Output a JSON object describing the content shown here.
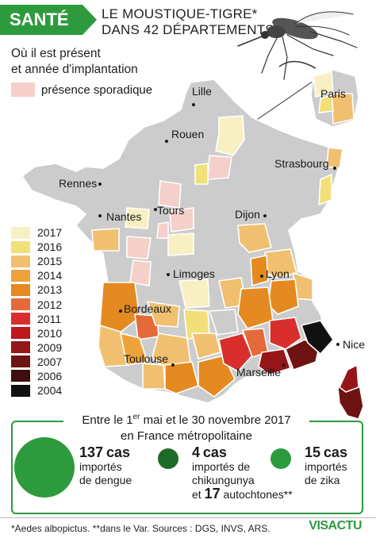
{
  "header": {
    "badge": "SANTÉ",
    "title_line1": "LE MOUSTIQUE-TIGRE*",
    "title_line2": "DANS 42 DÉPARTEMENTS"
  },
  "map_legend": {
    "subtitle_line1": "Où il est présent",
    "subtitle_line2": "et année d'implantation",
    "sporadic_label": "présence sporadique",
    "sporadic_color": "#f5cfca",
    "years": [
      {
        "label": "2017",
        "color": "#f8f0c2"
      },
      {
        "label": "2016",
        "color": "#f1e07a"
      },
      {
        "label": "2015",
        "color": "#f0c070"
      },
      {
        "label": "2014",
        "color": "#eda23a"
      },
      {
        "label": "2013",
        "color": "#e48a20"
      },
      {
        "label": "2012",
        "color": "#e56a3a"
      },
      {
        "label": "2011",
        "color": "#d92f2c"
      },
      {
        "label": "2010",
        "color": "#c0171d"
      },
      {
        "label": "2009",
        "color": "#951619"
      },
      {
        "label": "2007",
        "color": "#6e1212"
      },
      {
        "label": "2006",
        "color": "#3e0d0d"
      },
      {
        "label": "2004",
        "color": "#111111"
      }
    ],
    "absent_color": "#cccccc"
  },
  "cities": {
    "lille": "Lille",
    "rouen": "Rouen",
    "paris": "Paris",
    "strasbourg": "Strasbourg",
    "rennes": "Rennes",
    "nantes": "Nantes",
    "tours": "Tours",
    "dijon": "Dijon",
    "limoges": "Limoges",
    "lyon": "Lyon",
    "bordeaux": "Bordeaux",
    "toulouse": "Toulouse",
    "marseille": "Marseille",
    "nice": "Nice"
  },
  "cases": {
    "period_line1": "Entre le 1er mai et le 30 novembre 2017",
    "period_line1_pre": "Entre le 1",
    "period_line1_sup": "er",
    "period_line1_post": " mai et le 30 novembre 2017",
    "period_line2": "en France métropolitaine",
    "dengue": {
      "count": "137",
      "unit": "cas",
      "line1": "importés",
      "line2": "de dengue",
      "color": "#2e9a3e"
    },
    "chikungunya": {
      "count": "4",
      "unit": "cas",
      "line1": "importés de",
      "line2": "chikungunya",
      "line3_pre": "et",
      "autochthonous_count": "17",
      "line3_post": "autochtones**",
      "color": "#1e6a2a"
    },
    "zika": {
      "count": "15",
      "unit": "cas",
      "line1": "importés",
      "line2": "de zika",
      "color": "#2e9a3e"
    }
  },
  "footer": {
    "notes": "*Aedes albopictus. **dans le Var.  Sources : DGS, INVS, ARS.",
    "brand": "VISACTU"
  }
}
